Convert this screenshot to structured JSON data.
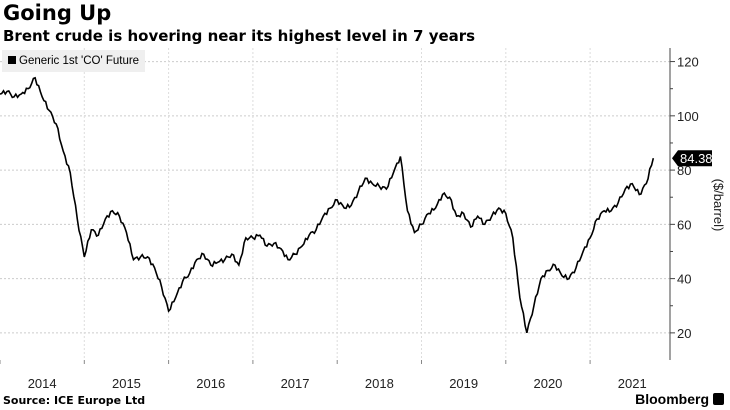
{
  "title": "Going Up",
  "subtitle": "Brent crude is hovering near its highest level in 7 years",
  "legend": "Generic 1st 'CO' Future",
  "source": "Source: ICE Europe Ltd",
  "brand": "Bloomberg",
  "chart_data": {
    "type": "line",
    "title": "Going Up",
    "subtitle": "Brent crude is hovering near its highest level in 7 years",
    "ylabel": "($/barrel)",
    "y_axis_side": "right",
    "ylim": [
      10,
      125
    ],
    "yticks": [
      20,
      40,
      60,
      80,
      100,
      120
    ],
    "xlim": [
      2014.0,
      2021.9
    ],
    "xticks": [
      "2014",
      "2015",
      "2016",
      "2017",
      "2018",
      "2019",
      "2020",
      "2021"
    ],
    "grid": true,
    "legend_position": "top-left",
    "last_value_label": "84.38",
    "series": [
      {
        "name": "Generic 1st 'CO' Future",
        "color": "#000000",
        "x_start": "2014-01",
        "frequency": "monthly",
        "values": [
          108,
          109,
          107,
          108,
          110,
          114,
          107,
          102,
          97,
          87,
          79,
          62,
          48,
          58,
          56,
          62,
          65,
          63,
          57,
          47,
          48,
          48,
          44,
          37,
          28,
          33,
          39,
          42,
          47,
          49,
          45,
          46,
          47,
          49,
          45,
          55,
          55,
          56,
          52,
          53,
          51,
          47,
          49,
          52,
          56,
          58,
          63,
          66,
          69,
          66,
          67,
          72,
          77,
          75,
          74,
          73,
          79,
          85,
          65,
          57,
          60,
          64,
          66,
          71,
          70,
          63,
          64,
          59,
          63,
          60,
          63,
          66,
          64,
          55,
          33,
          20,
          30,
          40,
          43,
          45,
          41,
          40,
          44,
          50,
          55,
          62,
          65,
          65,
          68,
          73,
          75,
          71,
          75,
          84.38
        ]
      }
    ]
  }
}
